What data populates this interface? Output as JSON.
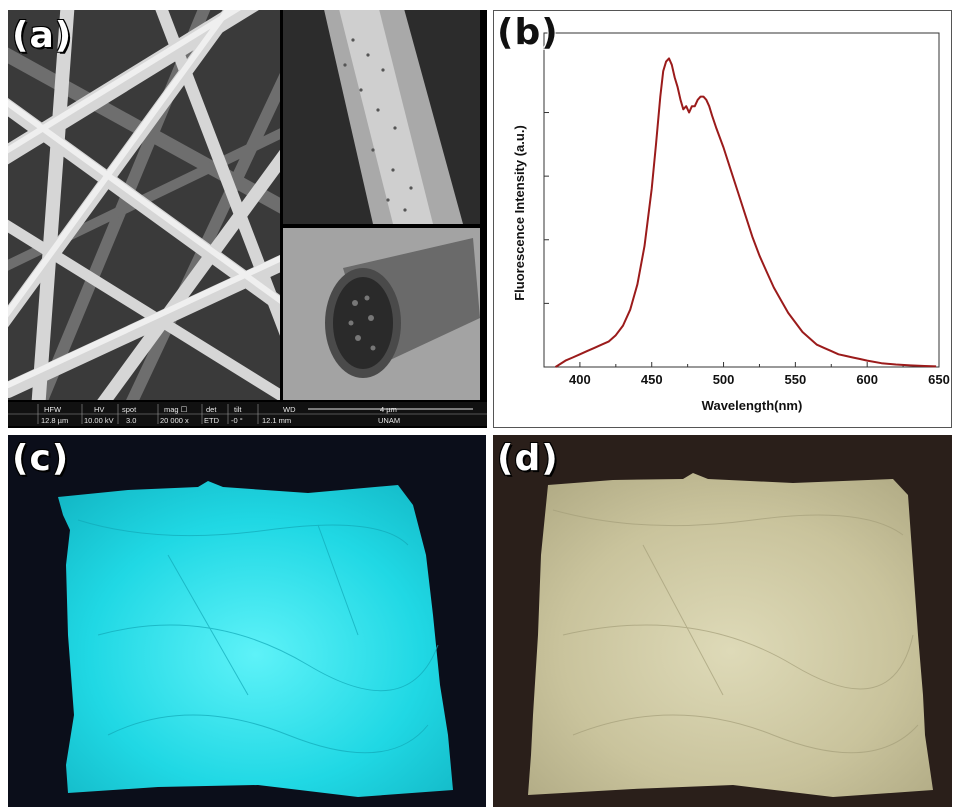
{
  "panels": {
    "a": {
      "label": "(a)"
    },
    "b": {
      "label": "(b)"
    },
    "c": {
      "label": "(c)"
    },
    "d": {
      "label": "(d)"
    }
  },
  "sem_databar": {
    "col1_header": "HFW",
    "col1_value": "12.8 µm",
    "col2_header": "HV",
    "col2_value": "10.00 kV",
    "col3_header": "spot",
    "col3_value": "3.0",
    "col4_header": "mag ☐",
    "col4_value": "20 000 x",
    "col5_header": "det",
    "col5_value": "ETD",
    "col6_header": "tilt",
    "col6_value": "-0 °",
    "col7_header": "WD",
    "col7_value": "12.1 mm",
    "scale_label": "4 µm",
    "institution": "UNAM"
  },
  "colors": {
    "line": "#9b1b1b",
    "fluorescent_mat": "#20d8e4",
    "daylight_mat": "#c9c39c",
    "dark_background": "#0b0e1a",
    "brown_background": "#2a1f1a"
  },
  "chart_data": {
    "type": "line",
    "title": "",
    "xlabel": "Wavelength(nm)",
    "ylabel": "Fluorescence Intensity (a.u.)",
    "xlim": [
      375,
      650
    ],
    "ylim": [
      0,
      1.05
    ],
    "x_ticks": [
      400,
      450,
      500,
      550,
      600,
      650
    ],
    "x_tick_labels": [
      "400",
      "450",
      "500",
      "550",
      "600",
      "650"
    ],
    "y_tick_labels_shown": false,
    "grid": false,
    "series": [
      {
        "x": [
          383,
          390,
          395,
          400,
          405,
          410,
          415,
          420,
          425,
          430,
          435,
          440,
          445,
          450,
          453,
          456,
          458,
          460,
          462,
          464,
          466,
          468,
          470,
          472,
          474,
          476,
          478,
          480,
          482,
          484,
          486,
          488,
          490,
          492,
          495,
          500,
          505,
          510,
          515,
          520,
          525,
          530,
          535,
          540,
          545,
          550,
          555,
          560,
          565,
          570,
          575,
          580,
          585,
          590,
          595,
          600,
          610,
          620,
          630,
          640,
          648
        ],
        "y": [
          0.0,
          0.02,
          0.03,
          0.04,
          0.05,
          0.06,
          0.07,
          0.08,
          0.1,
          0.13,
          0.18,
          0.26,
          0.38,
          0.56,
          0.7,
          0.85,
          0.93,
          0.96,
          0.97,
          0.95,
          0.91,
          0.88,
          0.84,
          0.81,
          0.82,
          0.8,
          0.82,
          0.82,
          0.84,
          0.85,
          0.85,
          0.84,
          0.82,
          0.79,
          0.75,
          0.69,
          0.62,
          0.55,
          0.48,
          0.41,
          0.35,
          0.3,
          0.25,
          0.21,
          0.17,
          0.14,
          0.11,
          0.09,
          0.07,
          0.06,
          0.05,
          0.04,
          0.035,
          0.03,
          0.025,
          0.02,
          0.012,
          0.008,
          0.005,
          0.003,
          0.002
        ]
      }
    ]
  }
}
